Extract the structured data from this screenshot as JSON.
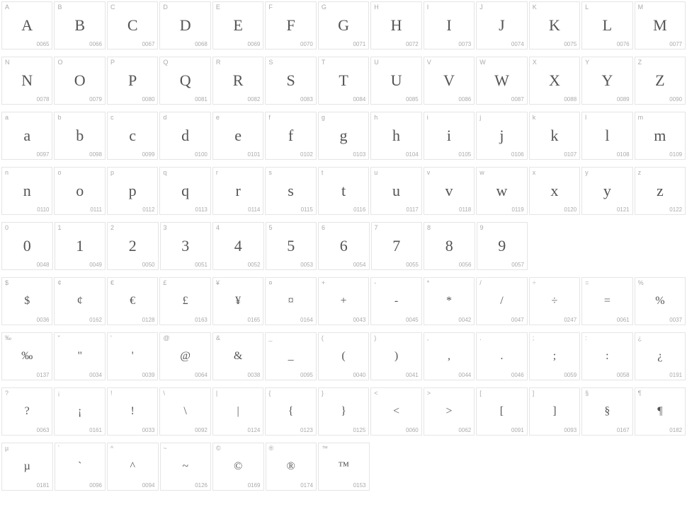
{
  "rows": [
    {
      "cells": [
        {
          "label": "A",
          "glyph": "A",
          "code": "0065"
        },
        {
          "label": "B",
          "glyph": "B",
          "code": "0066"
        },
        {
          "label": "C",
          "glyph": "C",
          "code": "0067"
        },
        {
          "label": "D",
          "glyph": "D",
          "code": "0068"
        },
        {
          "label": "E",
          "glyph": "E",
          "code": "0069"
        },
        {
          "label": "F",
          "glyph": "F",
          "code": "0070"
        },
        {
          "label": "G",
          "glyph": "G",
          "code": "0071"
        },
        {
          "label": "H",
          "glyph": "H",
          "code": "0072"
        },
        {
          "label": "I",
          "glyph": "I",
          "code": "0073"
        },
        {
          "label": "J",
          "glyph": "J",
          "code": "0074"
        },
        {
          "label": "K",
          "glyph": "K",
          "code": "0075"
        },
        {
          "label": "L",
          "glyph": "L",
          "code": "0076"
        },
        {
          "label": "M",
          "glyph": "M",
          "code": "0077"
        }
      ]
    },
    {
      "cells": [
        {
          "label": "N",
          "glyph": "N",
          "code": "0078"
        },
        {
          "label": "O",
          "glyph": "O",
          "code": "0079"
        },
        {
          "label": "P",
          "glyph": "P",
          "code": "0080"
        },
        {
          "label": "Q",
          "glyph": "Q",
          "code": "0081"
        },
        {
          "label": "R",
          "glyph": "R",
          "code": "0082"
        },
        {
          "label": "S",
          "glyph": "S",
          "code": "0083"
        },
        {
          "label": "T",
          "glyph": "T",
          "code": "0084"
        },
        {
          "label": "U",
          "glyph": "U",
          "code": "0085"
        },
        {
          "label": "V",
          "glyph": "V",
          "code": "0086"
        },
        {
          "label": "W",
          "glyph": "W",
          "code": "0087"
        },
        {
          "label": "X",
          "glyph": "X",
          "code": "0088"
        },
        {
          "label": "Y",
          "glyph": "Y",
          "code": "0089"
        },
        {
          "label": "Z",
          "glyph": "Z",
          "code": "0090"
        }
      ]
    },
    {
      "cells": [
        {
          "label": "a",
          "glyph": "a",
          "code": "0097"
        },
        {
          "label": "b",
          "glyph": "b",
          "code": "0098"
        },
        {
          "label": "c",
          "glyph": "c",
          "code": "0099"
        },
        {
          "label": "d",
          "glyph": "d",
          "code": "0100"
        },
        {
          "label": "e",
          "glyph": "e",
          "code": "0101"
        },
        {
          "label": "f",
          "glyph": "f",
          "code": "0102"
        },
        {
          "label": "g",
          "glyph": "g",
          "code": "0103"
        },
        {
          "label": "h",
          "glyph": "h",
          "code": "0104"
        },
        {
          "label": "i",
          "glyph": "i",
          "code": "0105"
        },
        {
          "label": "j",
          "glyph": "j",
          "code": "0106"
        },
        {
          "label": "k",
          "glyph": "k",
          "code": "0107"
        },
        {
          "label": "l",
          "glyph": "l",
          "code": "0108"
        },
        {
          "label": "m",
          "glyph": "m",
          "code": "0109"
        }
      ]
    },
    {
      "cells": [
        {
          "label": "n",
          "glyph": "n",
          "code": "0110"
        },
        {
          "label": "o",
          "glyph": "o",
          "code": "0111"
        },
        {
          "label": "p",
          "glyph": "p",
          "code": "0112"
        },
        {
          "label": "q",
          "glyph": "q",
          "code": "0113"
        },
        {
          "label": "r",
          "glyph": "r",
          "code": "0114"
        },
        {
          "label": "s",
          "glyph": "s",
          "code": "0115"
        },
        {
          "label": "t",
          "glyph": "t",
          "code": "0116"
        },
        {
          "label": "u",
          "glyph": "u",
          "code": "0117"
        },
        {
          "label": "v",
          "glyph": "v",
          "code": "0118"
        },
        {
          "label": "w",
          "glyph": "w",
          "code": "0119"
        },
        {
          "label": "x",
          "glyph": "x",
          "code": "0120"
        },
        {
          "label": "y",
          "glyph": "y",
          "code": "0121"
        },
        {
          "label": "z",
          "glyph": "z",
          "code": "0122"
        }
      ]
    },
    {
      "cells": [
        {
          "label": "0",
          "glyph": "0",
          "code": "0048"
        },
        {
          "label": "1",
          "glyph": "1",
          "code": "0049"
        },
        {
          "label": "2",
          "glyph": "2",
          "code": "0050"
        },
        {
          "label": "3",
          "glyph": "3",
          "code": "0051"
        },
        {
          "label": "4",
          "glyph": "4",
          "code": "0052"
        },
        {
          "label": "5",
          "glyph": "5",
          "code": "0053"
        },
        {
          "label": "6",
          "glyph": "6",
          "code": "0054"
        },
        {
          "label": "7",
          "glyph": "7",
          "code": "0055"
        },
        {
          "label": "8",
          "glyph": "8",
          "code": "0056"
        },
        {
          "label": "9",
          "glyph": "9",
          "code": "0057"
        }
      ]
    },
    {
      "cells": [
        {
          "label": "$",
          "glyph": "$",
          "code": "0036",
          "small": true
        },
        {
          "label": "¢",
          "glyph": "¢",
          "code": "0162",
          "small": true
        },
        {
          "label": "€",
          "glyph": "€",
          "code": "0128",
          "small": true
        },
        {
          "label": "£",
          "glyph": "£",
          "code": "0163",
          "small": true
        },
        {
          "label": "¥",
          "glyph": "¥",
          "code": "0165",
          "small": true
        },
        {
          "label": "¤",
          "glyph": "¤",
          "code": "0164",
          "small": true
        },
        {
          "label": "+",
          "glyph": "+",
          "code": "0043",
          "small": true
        },
        {
          "label": "-",
          "glyph": "-",
          "code": "0045",
          "small": true
        },
        {
          "label": "*",
          "glyph": "*",
          "code": "0042",
          "small": true
        },
        {
          "label": "/",
          "glyph": "/",
          "code": "0047",
          "small": true
        },
        {
          "label": "÷",
          "glyph": "÷",
          "code": "0247",
          "small": true
        },
        {
          "label": "=",
          "glyph": "=",
          "code": "0061",
          "small": true
        },
        {
          "label": "%",
          "glyph": "%",
          "code": "0037",
          "small": true
        }
      ]
    },
    {
      "cells": [
        {
          "label": "‰",
          "glyph": "‰",
          "code": "0137",
          "small": true
        },
        {
          "label": "\"",
          "glyph": "\"",
          "code": "0034",
          "small": true
        },
        {
          "label": "'",
          "glyph": "'",
          "code": "0039",
          "small": true
        },
        {
          "label": "@",
          "glyph": "@",
          "code": "0064",
          "small": true
        },
        {
          "label": "&",
          "glyph": "&",
          "code": "0038",
          "small": true
        },
        {
          "label": "_",
          "glyph": "_",
          "code": "0095",
          "small": true
        },
        {
          "label": "(",
          "glyph": "(",
          "code": "0040",
          "small": true
        },
        {
          "label": ")",
          "glyph": ")",
          "code": "0041",
          "small": true
        },
        {
          "label": ",",
          "glyph": ",",
          "code": "0044",
          "small": true
        },
        {
          "label": ".",
          "glyph": ".",
          "code": "0046",
          "small": true
        },
        {
          "label": ";",
          "glyph": ";",
          "code": "0059",
          "small": true
        },
        {
          "label": ":",
          "glyph": ":",
          "code": "0058",
          "small": true
        },
        {
          "label": "¿",
          "glyph": "¿",
          "code": "0191",
          "small": true
        }
      ]
    },
    {
      "cells": [
        {
          "label": "?",
          "glyph": "?",
          "code": "0063",
          "small": true
        },
        {
          "label": "¡",
          "glyph": "¡",
          "code": "0161",
          "small": true
        },
        {
          "label": "!",
          "glyph": "!",
          "code": "0033",
          "small": true
        },
        {
          "label": "\\",
          "glyph": "\\",
          "code": "0092",
          "small": true
        },
        {
          "label": "|",
          "glyph": "|",
          "code": "0124",
          "small": true
        },
        {
          "label": "{",
          "glyph": "{",
          "code": "0123",
          "small": true
        },
        {
          "label": "}",
          "glyph": "}",
          "code": "0125",
          "small": true
        },
        {
          "label": "<",
          "glyph": "<",
          "code": "0060",
          "small": true
        },
        {
          "label": ">",
          "glyph": ">",
          "code": "0062",
          "small": true
        },
        {
          "label": "[",
          "glyph": "[",
          "code": "0091",
          "small": true
        },
        {
          "label": "]",
          "glyph": "]",
          "code": "0093",
          "small": true
        },
        {
          "label": "§",
          "glyph": "§",
          "code": "0167",
          "small": true
        },
        {
          "label": "¶",
          "glyph": "¶",
          "code": "0182",
          "small": true
        }
      ]
    },
    {
      "cells": [
        {
          "label": "µ",
          "glyph": "µ",
          "code": "0181",
          "small": true
        },
        {
          "label": "`",
          "glyph": "`",
          "code": "0096",
          "small": true
        },
        {
          "label": "^",
          "glyph": "^",
          "code": "0094",
          "small": true
        },
        {
          "label": "~",
          "glyph": "~",
          "code": "0126",
          "small": true
        },
        {
          "label": "©",
          "glyph": "©",
          "code": "0169",
          "small": true
        },
        {
          "label": "®",
          "glyph": "®",
          "code": "0174",
          "small": true
        },
        {
          "label": "™",
          "glyph": "™",
          "code": "0153",
          "small": true
        }
      ]
    }
  ],
  "colors": {
    "border": "#e5e5e5",
    "label": "#aaaaaa",
    "code": "#aaaaaa",
    "glyph": "#555555",
    "background": "#ffffff"
  }
}
